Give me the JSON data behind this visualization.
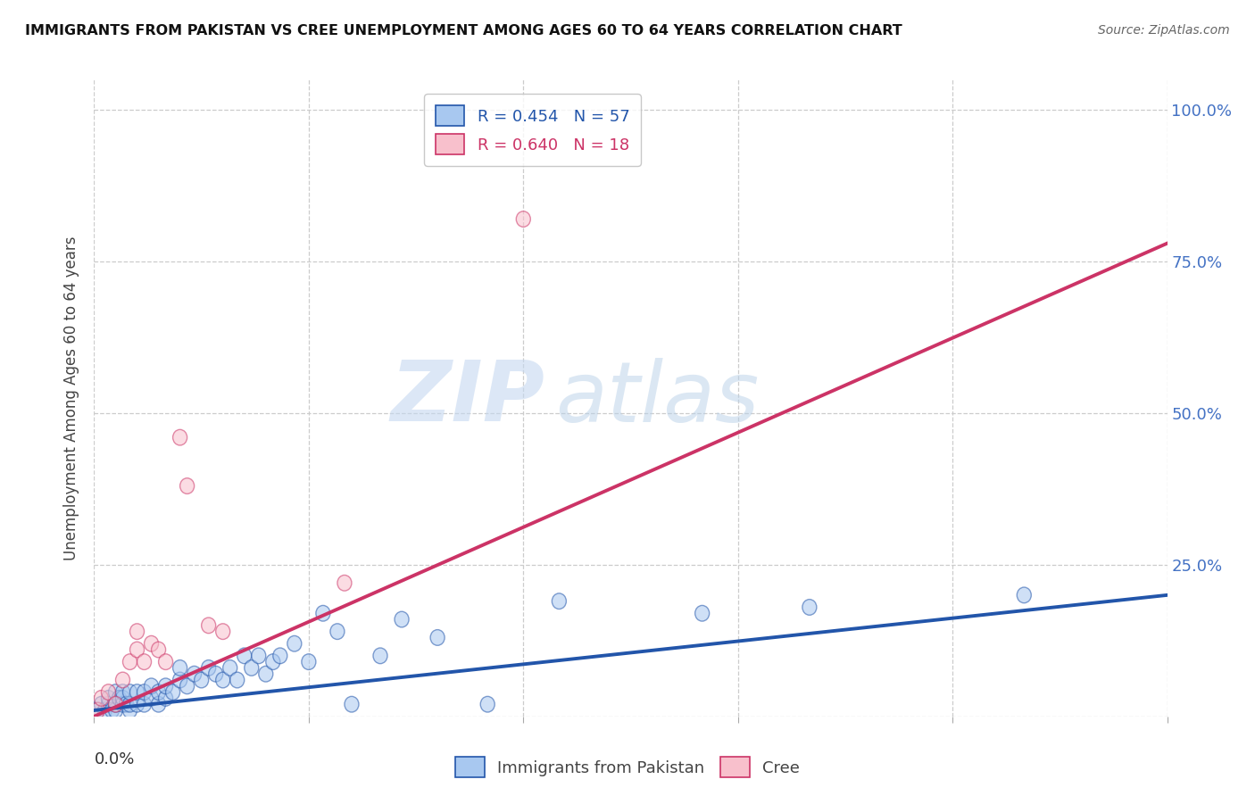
{
  "title": "IMMIGRANTS FROM PAKISTAN VS CREE UNEMPLOYMENT AMONG AGES 60 TO 64 YEARS CORRELATION CHART",
  "source": "Source: ZipAtlas.com",
  "ylabel": "Unemployment Among Ages 60 to 64 years",
  "yticks": [
    0.0,
    0.25,
    0.5,
    0.75,
    1.0
  ],
  "ytick_labels": [
    "",
    "25.0%",
    "50.0%",
    "75.0%",
    "100.0%"
  ],
  "xlim": [
    0.0,
    0.15
  ],
  "ylim": [
    0.0,
    1.05
  ],
  "watermark_zip": "ZIP",
  "watermark_atlas": "atlas",
  "legend_blue_r": "R = 0.454",
  "legend_blue_n": "N = 57",
  "legend_pink_r": "R = 0.640",
  "legend_pink_n": "N = 18",
  "label_blue": "Immigrants from Pakistan",
  "label_pink": "Cree",
  "blue_fill": "#a8c8f0",
  "pink_fill": "#f8c0cc",
  "line_blue_color": "#2255aa",
  "line_pink_color": "#cc3366",
  "blue_scatter_x": [
    0.0005,
    0.001,
    0.0015,
    0.002,
    0.002,
    0.0025,
    0.003,
    0.003,
    0.003,
    0.0035,
    0.004,
    0.004,
    0.004,
    0.0045,
    0.005,
    0.005,
    0.005,
    0.006,
    0.006,
    0.007,
    0.007,
    0.008,
    0.008,
    0.009,
    0.009,
    0.01,
    0.01,
    0.011,
    0.012,
    0.012,
    0.013,
    0.014,
    0.015,
    0.016,
    0.017,
    0.018,
    0.019,
    0.02,
    0.021,
    0.022,
    0.023,
    0.024,
    0.025,
    0.026,
    0.028,
    0.03,
    0.032,
    0.034,
    0.036,
    0.04,
    0.043,
    0.048,
    0.055,
    0.065,
    0.085,
    0.1,
    0.13
  ],
  "blue_scatter_y": [
    0.01,
    0.02,
    0.01,
    0.02,
    0.03,
    0.01,
    0.01,
    0.02,
    0.04,
    0.03,
    0.02,
    0.03,
    0.04,
    0.02,
    0.01,
    0.02,
    0.04,
    0.02,
    0.04,
    0.02,
    0.04,
    0.03,
    0.05,
    0.02,
    0.04,
    0.03,
    0.05,
    0.04,
    0.06,
    0.08,
    0.05,
    0.07,
    0.06,
    0.08,
    0.07,
    0.06,
    0.08,
    0.06,
    0.1,
    0.08,
    0.1,
    0.07,
    0.09,
    0.1,
    0.12,
    0.09,
    0.17,
    0.14,
    0.02,
    0.1,
    0.16,
    0.13,
    0.02,
    0.19,
    0.17,
    0.18,
    0.2
  ],
  "pink_scatter_x": [
    0.0005,
    0.001,
    0.002,
    0.003,
    0.004,
    0.005,
    0.006,
    0.006,
    0.007,
    0.008,
    0.009,
    0.01,
    0.012,
    0.013,
    0.016,
    0.018,
    0.035,
    0.06
  ],
  "pink_scatter_y": [
    0.01,
    0.03,
    0.04,
    0.02,
    0.06,
    0.09,
    0.11,
    0.14,
    0.09,
    0.12,
    0.11,
    0.09,
    0.46,
    0.38,
    0.15,
    0.14,
    0.22,
    0.82
  ],
  "blue_line_x": [
    0.0,
    0.15
  ],
  "blue_line_y": [
    0.01,
    0.2
  ],
  "pink_line_x": [
    0.0,
    0.15
  ],
  "pink_line_y": [
    0.0,
    0.78
  ],
  "bg_color": "#ffffff",
  "grid_color": "#cccccc",
  "right_tick_color": "#4472c4"
}
